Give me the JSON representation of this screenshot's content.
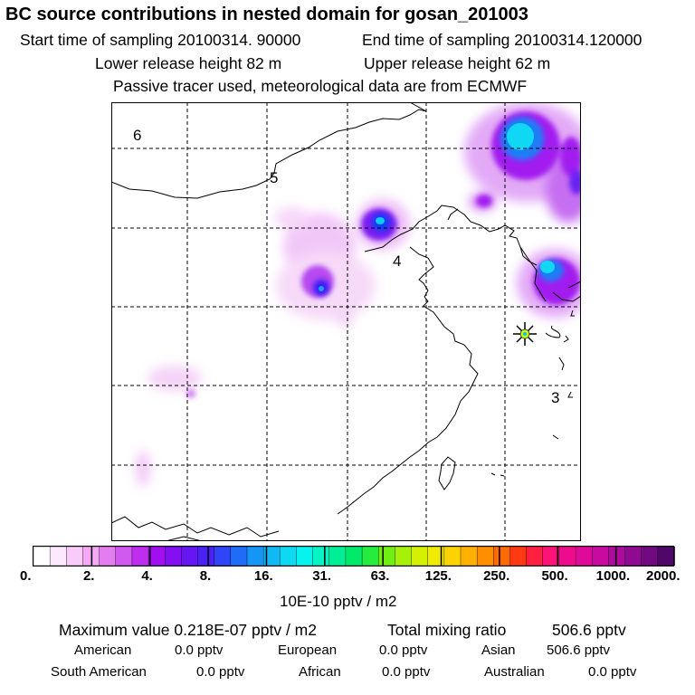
{
  "header": {
    "title": "BC  source contributions in nested domain for gosan_201003",
    "start_label": "Start time of sampling 20100314. 90000",
    "end_label": "End time of sampling 20100314.120000",
    "lower_label": "Lower release height   82 m",
    "upper_label": "Upper release height   62 m",
    "note": "Passive tracer used, meteorological data are from ECMWF"
  },
  "map": {
    "region_labels": [
      {
        "text": "6"
      },
      {
        "text": "5"
      },
      {
        "text": "4"
      },
      {
        "text": "3"
      }
    ],
    "receptor_marker": "receptor-star-icon"
  },
  "colorbar": {
    "colors": [
      "#ffffff",
      "#fde9fd",
      "#f8cbf8",
      "#f2a8f4",
      "#e47ef0",
      "#d259ef",
      "#bf2eef",
      "#a10ff0",
      "#8410f2",
      "#6616f3",
      "#4a22f4",
      "#3045f7",
      "#1f6cf8",
      "#1596f7",
      "#10b9f5",
      "#0ed9f3",
      "#07f3ef",
      "#04f4c5",
      "#00ef96",
      "#00e96a",
      "#26ec3e",
      "#70f012",
      "#a7f00a",
      "#d4f104",
      "#f1ea02",
      "#fcd300",
      "#ffb000",
      "#ff8e00",
      "#ff6a00",
      "#ff3a12",
      "#ff1f40",
      "#fd1277",
      "#ef0c8c",
      "#df0a9a",
      "#c80aa0",
      "#ad0a9e",
      "#8e0a93",
      "#710a80",
      "#4f076a"
    ],
    "tick_labels": [
      "0.",
      "2.",
      "4.",
      "8.",
      "16.",
      "31.",
      "63.",
      "125.",
      "250.",
      "500.",
      "1000.",
      "2000."
    ],
    "unit_label": "10E-10 pptv / m2"
  },
  "summary": {
    "max_label": "Maximum value  0.218E-07 pptv / m2",
    "total_label": "Total mixing ratio",
    "total_value": "506.6 pptv",
    "regions": [
      {
        "name": "American",
        "value": "0.0 pptv"
      },
      {
        "name": "European",
        "value": "0.0 pptv"
      },
      {
        "name": "Asian",
        "value": "506.6 pptv"
      },
      {
        "name": "South American",
        "value": "0.0 pptv"
      },
      {
        "name": "African",
        "value": "0.0 pptv"
      },
      {
        "name": "Australian",
        "value": "0.0 pptv"
      }
    ]
  }
}
